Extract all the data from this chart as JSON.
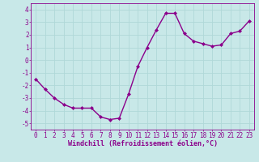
{
  "x": [
    0,
    1,
    2,
    3,
    4,
    5,
    6,
    7,
    8,
    9,
    10,
    11,
    12,
    13,
    14,
    15,
    16,
    17,
    18,
    19,
    20,
    21,
    22,
    23
  ],
  "y": [
    -1.5,
    -2.3,
    -3.0,
    -3.5,
    -3.8,
    -3.8,
    -3.8,
    -4.5,
    -4.7,
    -4.6,
    -2.7,
    -0.5,
    1.0,
    2.4,
    3.7,
    3.7,
    2.1,
    1.5,
    1.3,
    1.1,
    1.2,
    2.1,
    2.3,
    3.1
  ],
  "line_color": "#8B008B",
  "marker": "D",
  "marker_size": 2,
  "linewidth": 1.0,
  "xlabel": "Windchill (Refroidissement éolien,°C)",
  "xlabel_fontsize": 6,
  "xlim": [
    -0.5,
    23.5
  ],
  "ylim": [
    -5.5,
    4.5
  ],
  "yticks": [
    -5,
    -4,
    -3,
    -2,
    -1,
    0,
    1,
    2,
    3,
    4
  ],
  "xticks": [
    0,
    1,
    2,
    3,
    4,
    5,
    6,
    7,
    8,
    9,
    10,
    11,
    12,
    13,
    14,
    15,
    16,
    17,
    18,
    19,
    20,
    21,
    22,
    23
  ],
  "tick_fontsize": 5.5,
  "bg_color": "#c8e8e8",
  "grid_color": "#d8eeee",
  "axes_color": "#8B008B",
  "fig_bg": "#c8e8e8"
}
